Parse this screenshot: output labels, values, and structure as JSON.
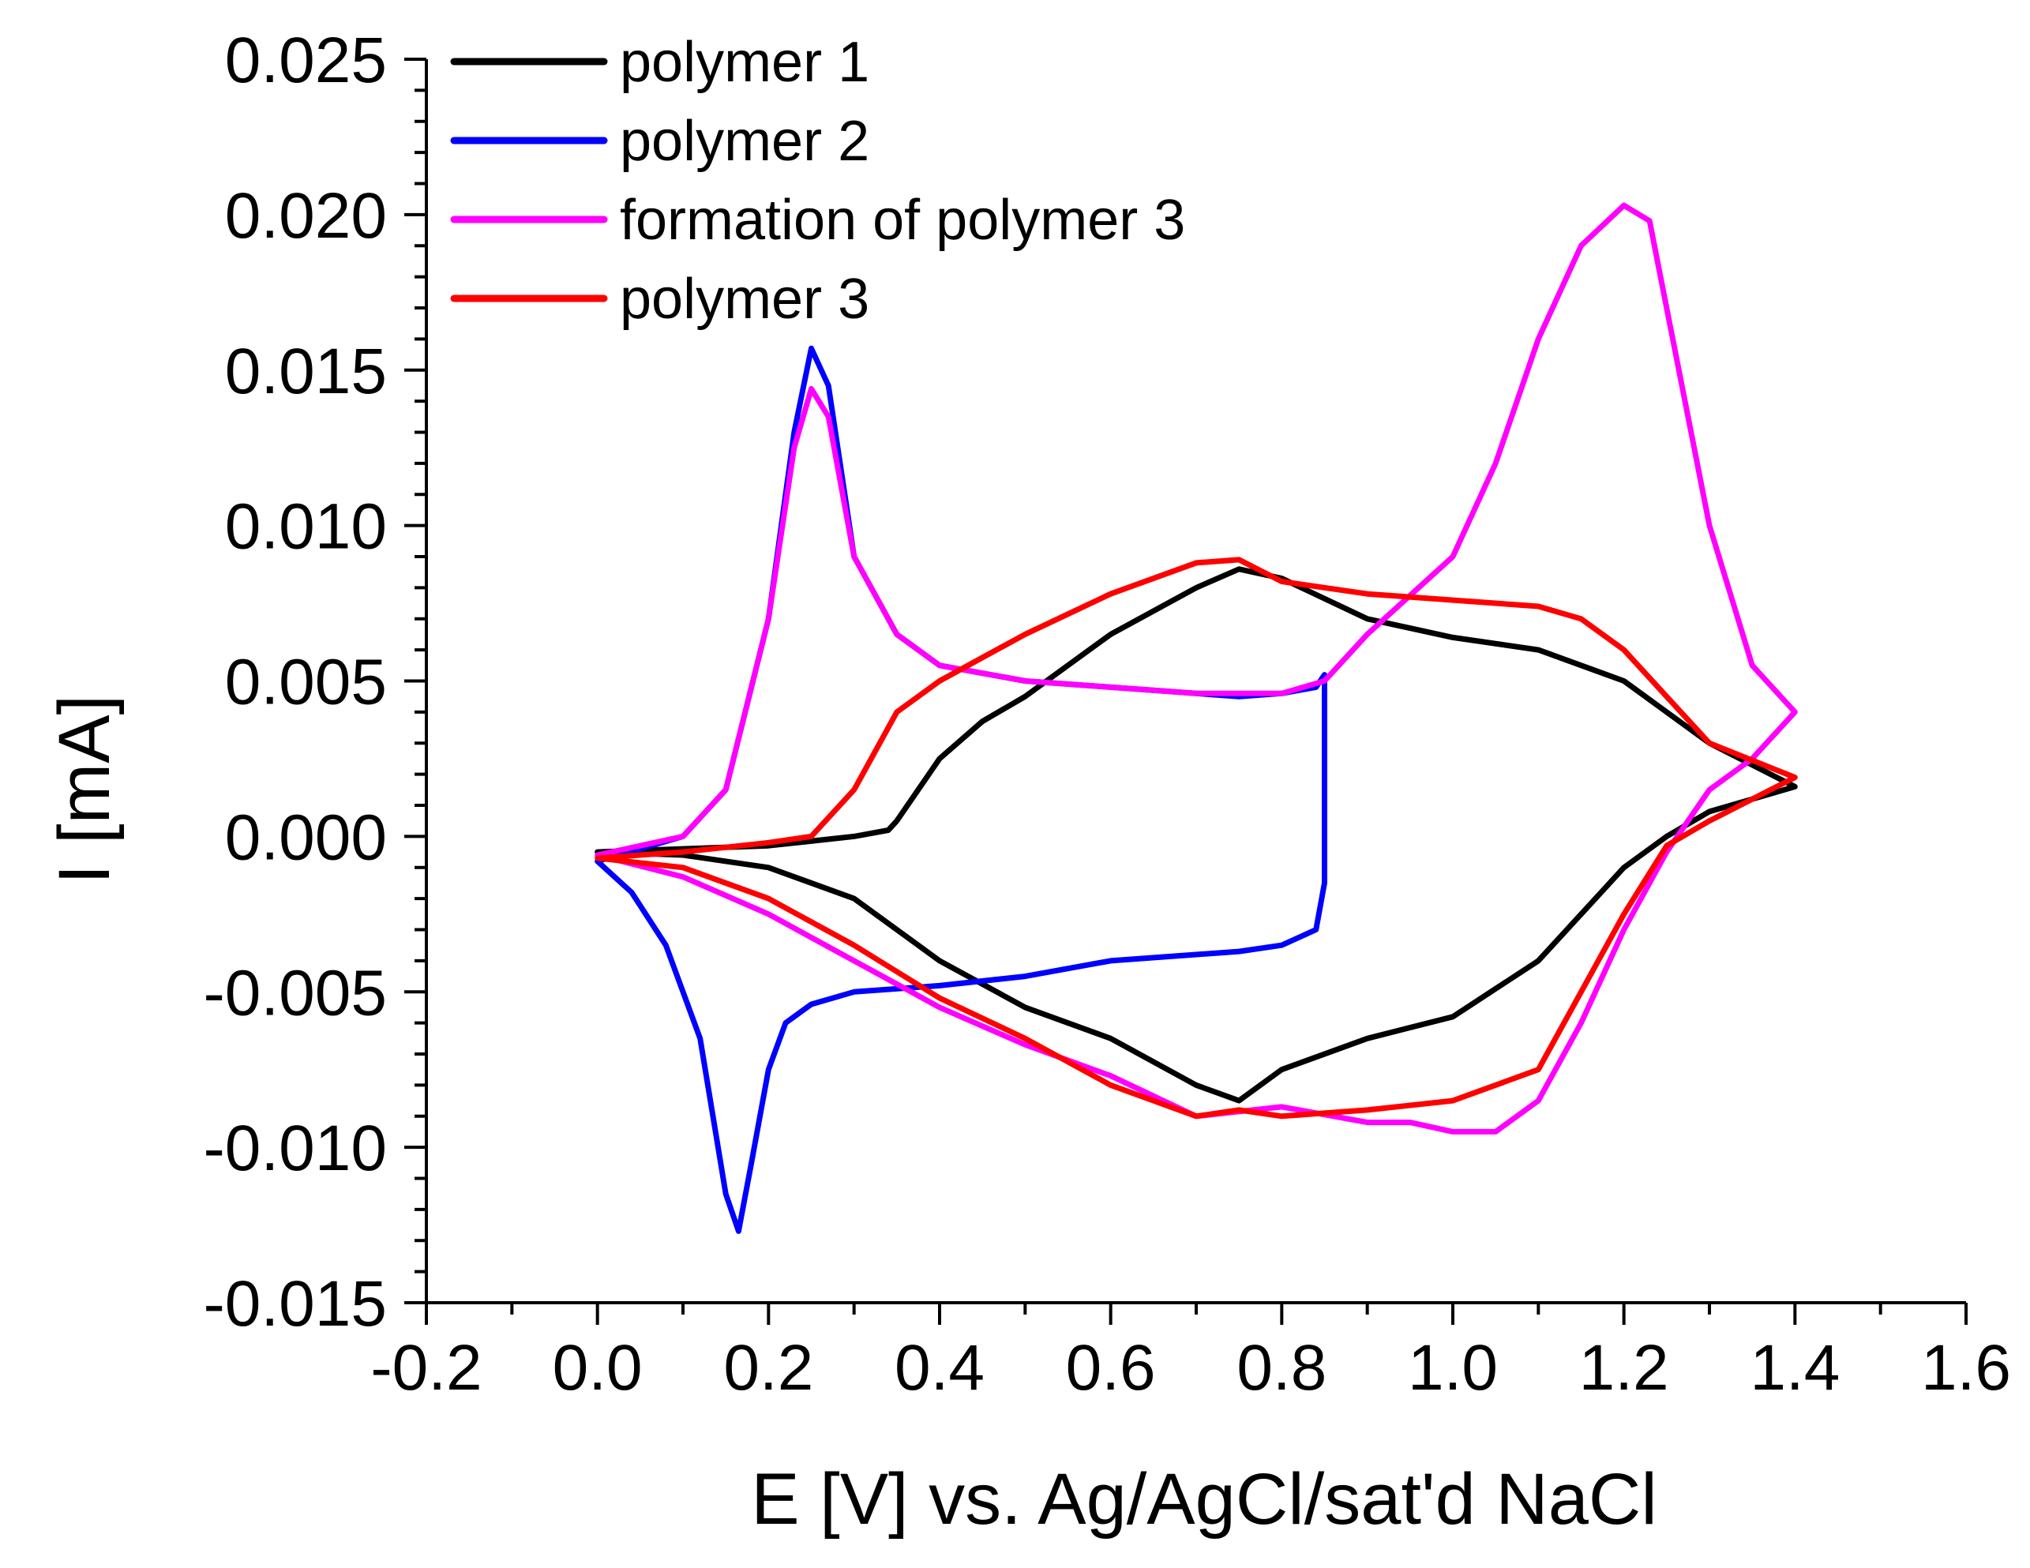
{
  "chart_data": {
    "type": "line",
    "title": "",
    "xlabel": "E [V] vs. Ag/AgCl/sat'd NaCl",
    "ylabel": "I [mA]",
    "xlim": [
      -0.2,
      1.6
    ],
    "ylim": [
      -0.015,
      0.025
    ],
    "x_ticks": [
      -0.2,
      0.0,
      0.2,
      0.4,
      0.6,
      0.8,
      1.0,
      1.2,
      1.4,
      1.6
    ],
    "x_tick_labels": [
      "-0.2",
      "0.0",
      "0.2",
      "0.4",
      "0.6",
      "0.8",
      "1.0",
      "1.2",
      "1.4",
      "1.6"
    ],
    "y_ticks": [
      -0.015,
      -0.01,
      -0.005,
      0.0,
      0.005,
      0.01,
      0.015,
      0.02,
      0.025
    ],
    "y_tick_labels": [
      "-0.015",
      "-0.010",
      "-0.005",
      "0.000",
      "0.005",
      "0.010",
      "0.015",
      "0.020",
      "0.025"
    ],
    "grid": false,
    "legend_position": "top-left",
    "series": [
      {
        "name": "polymer 1",
        "color": "#000000",
        "x": [
          0.0,
          0.1,
          0.2,
          0.3,
          0.34,
          0.35,
          0.4,
          0.45,
          0.5,
          0.6,
          0.7,
          0.75,
          0.8,
          0.9,
          1.0,
          1.1,
          1.2,
          1.3,
          1.4,
          1.4,
          1.3,
          1.25,
          1.2,
          1.1,
          1.0,
          0.9,
          0.8,
          0.75,
          0.7,
          0.6,
          0.5,
          0.4,
          0.3,
          0.2,
          0.1,
          0.0
        ],
        "values": [
          -0.0005,
          -0.0004,
          -0.0003,
          0.0,
          0.0002,
          0.0005,
          0.0025,
          0.0037,
          0.0045,
          0.0065,
          0.008,
          0.0086,
          0.0083,
          0.007,
          0.0064,
          0.006,
          0.005,
          0.003,
          0.0016,
          0.0016,
          0.0008,
          0.0,
          -0.001,
          -0.004,
          -0.0058,
          -0.0065,
          -0.0075,
          -0.0085,
          -0.008,
          -0.0065,
          -0.0055,
          -0.004,
          -0.002,
          -0.001,
          -0.0006,
          -0.0005
        ]
      },
      {
        "name": "polymer 2",
        "color": "#0000ff",
        "x": [
          0.0,
          0.1,
          0.15,
          0.2,
          0.23,
          0.25,
          0.27,
          0.3,
          0.35,
          0.4,
          0.5,
          0.6,
          0.7,
          0.75,
          0.8,
          0.84,
          0.85,
          0.85,
          0.84,
          0.8,
          0.75,
          0.7,
          0.6,
          0.5,
          0.4,
          0.3,
          0.25,
          0.22,
          0.2,
          0.18,
          0.165,
          0.15,
          0.12,
          0.08,
          0.04,
          0.0
        ],
        "values": [
          -0.0008,
          0.0,
          0.0015,
          0.007,
          0.013,
          0.0157,
          0.0145,
          0.009,
          0.0065,
          0.0055,
          0.005,
          0.0048,
          0.0046,
          0.0045,
          0.0046,
          0.0048,
          0.0052,
          -0.0015,
          -0.003,
          -0.0035,
          -0.0037,
          -0.0038,
          -0.004,
          -0.0045,
          -0.0048,
          -0.005,
          -0.0054,
          -0.006,
          -0.0075,
          -0.0105,
          -0.0127,
          -0.0115,
          -0.0065,
          -0.0035,
          -0.0018,
          -0.0008
        ]
      },
      {
        "name": "formation of polymer 3",
        "color": "#ff00ff",
        "x": [
          0.0,
          0.1,
          0.15,
          0.2,
          0.23,
          0.25,
          0.27,
          0.3,
          0.35,
          0.4,
          0.5,
          0.6,
          0.7,
          0.8,
          0.85,
          0.9,
          1.0,
          1.05,
          1.1,
          1.15,
          1.2,
          1.23,
          1.25,
          1.3,
          1.35,
          1.4,
          1.4,
          1.35,
          1.3,
          1.25,
          1.2,
          1.15,
          1.1,
          1.05,
          1.0,
          0.95,
          0.9,
          0.8,
          0.7,
          0.6,
          0.5,
          0.4,
          0.3,
          0.2,
          0.1,
          0.0
        ],
        "values": [
          -0.0006,
          0.0,
          0.0015,
          0.007,
          0.0125,
          0.0144,
          0.0135,
          0.009,
          0.0065,
          0.0055,
          0.005,
          0.0048,
          0.0046,
          0.0046,
          0.005,
          0.0065,
          0.009,
          0.012,
          0.016,
          0.019,
          0.0203,
          0.0198,
          0.017,
          0.01,
          0.0055,
          0.004,
          0.004,
          0.0025,
          0.0015,
          -0.0005,
          -0.003,
          -0.006,
          -0.0085,
          -0.0095,
          -0.0095,
          -0.0092,
          -0.0092,
          -0.0087,
          -0.009,
          -0.0077,
          -0.0067,
          -0.0055,
          -0.004,
          -0.0025,
          -0.0013,
          -0.0006
        ]
      },
      {
        "name": "polymer 3",
        "color": "#ff0000",
        "x": [
          0.0,
          0.1,
          0.2,
          0.25,
          0.3,
          0.35,
          0.4,
          0.5,
          0.6,
          0.7,
          0.75,
          0.8,
          0.9,
          1.0,
          1.1,
          1.15,
          1.2,
          1.25,
          1.3,
          1.4,
          1.4,
          1.3,
          1.25,
          1.2,
          1.15,
          1.1,
          1.0,
          0.9,
          0.8,
          0.75,
          0.7,
          0.6,
          0.5,
          0.4,
          0.3,
          0.2,
          0.1,
          0.0
        ],
        "values": [
          -0.0007,
          -0.0005,
          -0.0002,
          0.0,
          0.0015,
          0.004,
          0.005,
          0.0065,
          0.0078,
          0.0088,
          0.0089,
          0.0082,
          0.0078,
          0.0076,
          0.0074,
          0.007,
          0.006,
          0.0045,
          0.003,
          0.0019,
          0.0019,
          0.0005,
          -0.0003,
          -0.0025,
          -0.005,
          -0.0075,
          -0.0085,
          -0.0088,
          -0.009,
          -0.0088,
          -0.009,
          -0.008,
          -0.0065,
          -0.0052,
          -0.0035,
          -0.002,
          -0.001,
          -0.0007
        ]
      }
    ]
  }
}
